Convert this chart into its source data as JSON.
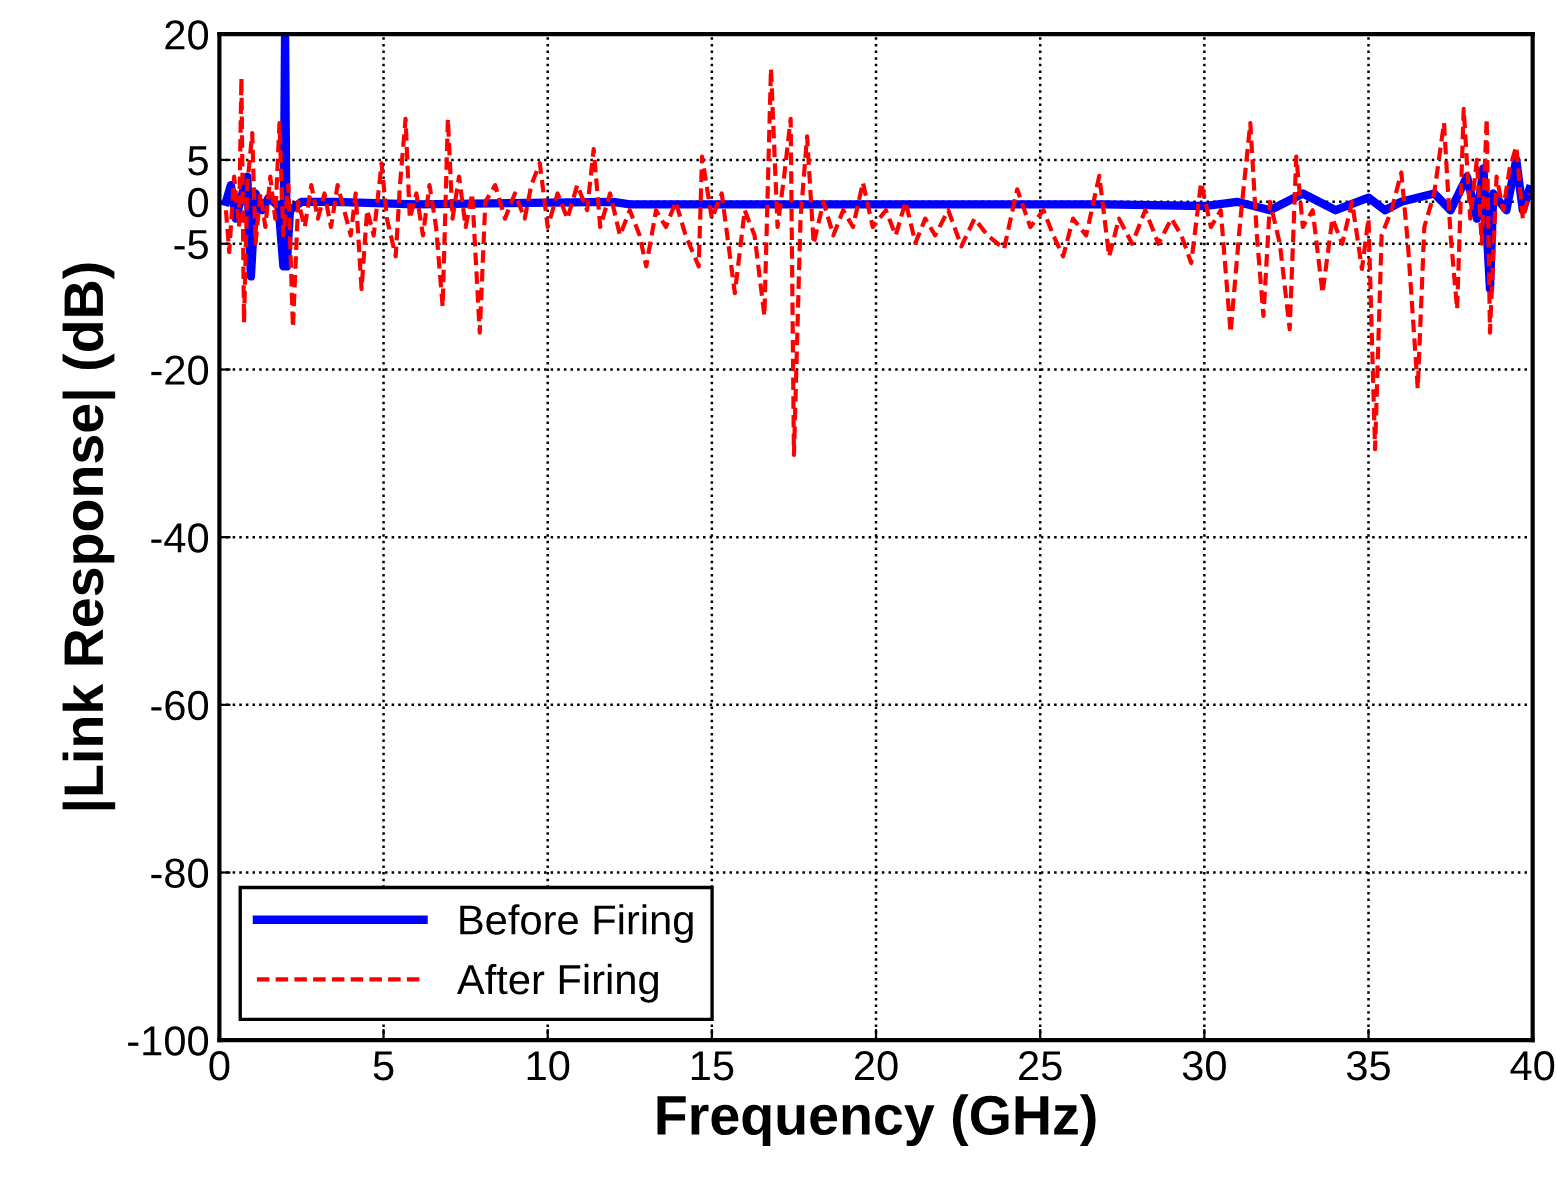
{
  "chart_data": {
    "type": "line",
    "xlabel": "Frequency (GHz)",
    "ylabel": "|Link Response| (dB)",
    "xlim": [
      0,
      40
    ],
    "xticks": [
      0,
      5,
      10,
      15,
      20,
      25,
      30,
      35,
      40
    ],
    "ylim": [
      -100,
      20
    ],
    "yticks": [
      -100,
      -80,
      -60,
      -40,
      -20,
      -5,
      0,
      5,
      20
    ],
    "grid": true,
    "legend": "bottom left",
    "series": [
      {
        "name": "Before Firing",
        "color": "#0000ff",
        "line_style": "solid",
        "x": [
          0.2,
          0.35,
          0.5,
          0.7,
          0.85,
          0.96,
          1.1,
          1.3,
          1.5,
          1.8,
          1.95,
          2.0,
          2.05,
          2.15,
          2.5,
          3.5,
          6,
          12,
          12.5,
          20,
          27,
          30,
          31,
          32,
          33,
          34,
          35,
          35.5,
          36,
          37,
          37.5,
          38,
          38.3,
          38.5,
          38.7,
          38.8,
          39.2,
          39.5,
          39.7,
          39.9
        ],
        "values": [
          0,
          2,
          -2,
          1,
          3,
          -8.9,
          1,
          -1,
          0.5,
          -0.5,
          -7.7,
          20,
          -7.7,
          -1,
          0,
          0,
          -0.3,
          0,
          -0.3,
          -0.3,
          -0.3,
          -0.5,
          0,
          -1,
          1,
          -1,
          0.5,
          -1,
          0,
          1,
          -1,
          3,
          -2,
          4,
          -10.4,
          1,
          -1,
          5,
          -1,
          1.5
        ]
      },
      {
        "name": "After Firing",
        "color": "#ff0000",
        "line_style": "dashed",
        "x": [
          0.2,
          0.3,
          0.45,
          0.6,
          0.67,
          0.75,
          0.85,
          1.0,
          1.1,
          1.25,
          1.4,
          1.55,
          1.7,
          1.83,
          1.95,
          2.1,
          2.24,
          2.4,
          2.6,
          2.8,
          3.0,
          3.2,
          3.4,
          3.6,
          3.8,
          4.0,
          4.15,
          4.33,
          4.5,
          4.7,
          4.94,
          5.1,
          5.37,
          5.5,
          5.67,
          5.8,
          6.0,
          6.2,
          6.4,
          6.6,
          6.8,
          6.96,
          7.1,
          7.3,
          7.5,
          7.7,
          7.93,
          8.1,
          8.4,
          8.7,
          9.0,
          9.3,
          9.5,
          9.76,
          10.0,
          10.3,
          10.6,
          10.9,
          11.2,
          11.4,
          11.6,
          11.9,
          12.2,
          12.5,
          12.8,
          13.0,
          13.3,
          13.6,
          13.9,
          14.2,
          14.6,
          14.7,
          15.0,
          15.3,
          15.7,
          16.0,
          16.3,
          16.6,
          16.8,
          17.0,
          17.2,
          17.4,
          17.5,
          17.7,
          17.9,
          18.1,
          18.4,
          18.7,
          19.0,
          19.3,
          19.6,
          19.9,
          20.3,
          20.6,
          20.9,
          21.2,
          21.5,
          21.8,
          22.2,
          22.6,
          23.0,
          23.4,
          23.9,
          24.3,
          24.7,
          25.1,
          25.4,
          25.7,
          26.0,
          26.4,
          26.8,
          27.1,
          27.4,
          27.8,
          28.2,
          28.6,
          29.0,
          29.3,
          29.6,
          29.9,
          30.2,
          30.5,
          30.8,
          31.1,
          31.4,
          31.6,
          31.8,
          32.0,
          32.3,
          32.6,
          32.8,
          33.0,
          33.3,
          33.6,
          33.9,
          34.2,
          34.5,
          34.8,
          35.0,
          35.2,
          35.4,
          35.7,
          36.0,
          36.2,
          36.5,
          36.7,
          37.0,
          37.3,
          37.5,
          37.7,
          37.9,
          38.1,
          38.3,
          38.45,
          38.6,
          38.7,
          38.9,
          39.1,
          39.3,
          39.5,
          39.7,
          39.9
        ],
        "values": [
          -1,
          -6,
          3,
          -3,
          14.8,
          -14.4,
          2,
          8.2,
          -5,
          1,
          -3,
          3,
          -2,
          9.4,
          -4,
          2,
          -15,
          0,
          -3,
          2,
          -2,
          1,
          -3,
          2,
          -1,
          -4,
          1,
          -10.4,
          -1,
          -4,
          4.6,
          -2,
          -6.5,
          2,
          9.9,
          -2,
          1,
          -4,
          2,
          -3,
          -12.5,
          9.9,
          -2,
          3,
          -3,
          1,
          -15.6,
          0,
          2,
          -2,
          1,
          -2,
          2,
          4.6,
          -3,
          1,
          -2,
          2,
          -1,
          6.3,
          -3,
          1,
          -4,
          -1,
          -4,
          -7.7,
          -1,
          -3,
          0,
          -4,
          -7.7,
          5.4,
          -2,
          1,
          -10.9,
          -1,
          -4,
          -13.6,
          15.9,
          -3,
          3,
          9.9,
          -30.2,
          -2,
          7.8,
          -5,
          0,
          -4,
          -1,
          -3,
          2.3,
          -3,
          -1,
          -4,
          0,
          -4.9,
          -2,
          -4,
          -1,
          -5.3,
          -2,
          -4,
          -5.6,
          1.5,
          -3,
          -1,
          -4,
          -6.5,
          -2,
          -4,
          3.1,
          -6.5,
          -2,
          -5,
          -1,
          -5,
          -2,
          -4,
          -7.3,
          2.3,
          -3,
          -1,
          -15.6,
          -2,
          9.4,
          -4,
          -13.6,
          0,
          -5,
          -15.2,
          5.4,
          -3,
          -1,
          -10.9,
          -2,
          -5,
          0,
          -8,
          -2,
          -29.5,
          -4,
          -1,
          3.5,
          -5,
          -22.3,
          -3,
          1,
          9.4,
          -4,
          -12.8,
          11.1,
          -2,
          5,
          -5,
          9.9,
          -15.6,
          3,
          -1,
          4,
          6.6,
          -2,
          1
        ]
      }
    ]
  }
}
